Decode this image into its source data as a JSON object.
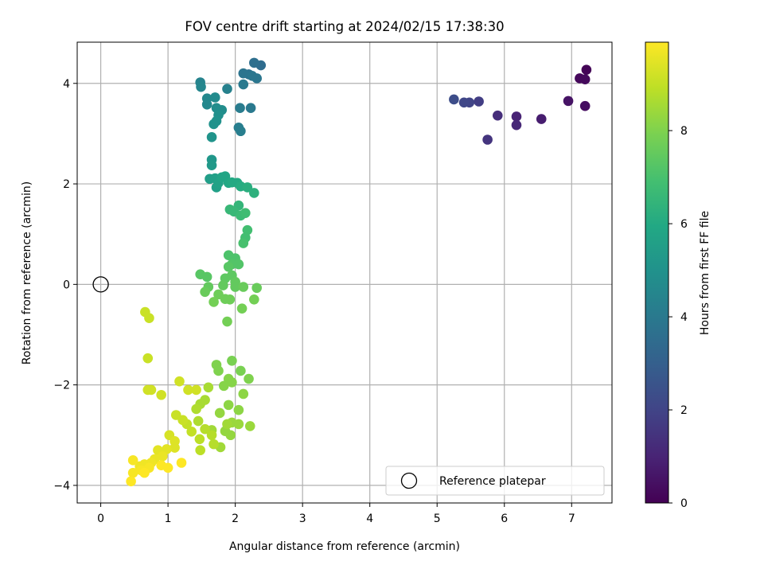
{
  "chart_data": {
    "type": "scatter",
    "title": "FOV centre drift starting at 2024/02/15 17:38:30",
    "xlabel": "Angular distance from reference (arcmin)",
    "ylabel": "Rotation from reference (arcmin)",
    "colorbar_label": "Hours from first FF file",
    "xlim": [
      -0.35,
      7.6
    ],
    "ylim": [
      -4.35,
      4.82
    ],
    "clim": [
      0,
      9.9
    ],
    "xticks": [
      0,
      1,
      2,
      3,
      4,
      5,
      6,
      7
    ],
    "yticks": [
      -4,
      -2,
      0,
      2,
      4
    ],
    "cticks": [
      0,
      2,
      4,
      6,
      8
    ],
    "grid": true,
    "legend": {
      "location": "lower right",
      "entries": [
        "Reference platepar"
      ]
    },
    "colormap": "viridis",
    "reference_point": {
      "x": 0,
      "y": 0,
      "label": "Reference platepar"
    },
    "points": [
      {
        "x": 7.22,
        "y": 4.27,
        "t": 0.1
      },
      {
        "x": 7.12,
        "y": 4.1,
        "t": 0.2
      },
      {
        "x": 7.2,
        "y": 4.08,
        "t": 0.25
      },
      {
        "x": 7.2,
        "y": 3.55,
        "t": 0.35
      },
      {
        "x": 6.95,
        "y": 3.65,
        "t": 0.5
      },
      {
        "x": 6.55,
        "y": 3.29,
        "t": 0.8
      },
      {
        "x": 6.18,
        "y": 3.34,
        "t": 1.0
      },
      {
        "x": 6.18,
        "y": 3.17,
        "t": 1.1
      },
      {
        "x": 5.9,
        "y": 3.36,
        "t": 1.3
      },
      {
        "x": 5.75,
        "y": 2.88,
        "t": 1.5
      },
      {
        "x": 5.62,
        "y": 3.64,
        "t": 1.8
      },
      {
        "x": 5.48,
        "y": 3.62,
        "t": 2.0
      },
      {
        "x": 5.4,
        "y": 3.62,
        "t": 2.1
      },
      {
        "x": 5.25,
        "y": 3.68,
        "t": 2.3
      },
      {
        "x": 2.38,
        "y": 4.36,
        "t": 3.5
      },
      {
        "x": 2.28,
        "y": 4.41,
        "t": 3.6
      },
      {
        "x": 2.2,
        "y": 4.18,
        "t": 3.7
      },
      {
        "x": 2.12,
        "y": 4.2,
        "t": 3.8
      },
      {
        "x": 2.32,
        "y": 4.1,
        "t": 3.9
      },
      {
        "x": 2.25,
        "y": 4.15,
        "t": 3.9
      },
      {
        "x": 2.12,
        "y": 3.98,
        "t": 4.0
      },
      {
        "x": 2.23,
        "y": 3.51,
        "t": 4.0
      },
      {
        "x": 2.07,
        "y": 3.51,
        "t": 4.1
      },
      {
        "x": 2.05,
        "y": 3.12,
        "t": 4.2
      },
      {
        "x": 2.08,
        "y": 3.05,
        "t": 4.2
      },
      {
        "x": 1.88,
        "y": 3.89,
        "t": 4.3
      },
      {
        "x": 1.48,
        "y": 4.02,
        "t": 4.4
      },
      {
        "x": 1.49,
        "y": 3.93,
        "t": 4.5
      },
      {
        "x": 1.58,
        "y": 3.7,
        "t": 4.6
      },
      {
        "x": 1.58,
        "y": 3.58,
        "t": 4.6
      },
      {
        "x": 1.7,
        "y": 3.72,
        "t": 4.7
      },
      {
        "x": 1.72,
        "y": 3.51,
        "t": 4.8
      },
      {
        "x": 1.8,
        "y": 3.47,
        "t": 4.8
      },
      {
        "x": 1.75,
        "y": 3.37,
        "t": 4.9
      },
      {
        "x": 1.72,
        "y": 3.25,
        "t": 5.0
      },
      {
        "x": 1.68,
        "y": 3.19,
        "t": 5.0
      },
      {
        "x": 1.65,
        "y": 2.93,
        "t": 5.1
      },
      {
        "x": 1.65,
        "y": 2.48,
        "t": 5.2
      },
      {
        "x": 1.65,
        "y": 2.37,
        "t": 5.3
      },
      {
        "x": 1.62,
        "y": 2.1,
        "t": 5.5
      },
      {
        "x": 1.7,
        "y": 2.11,
        "t": 5.6
      },
      {
        "x": 1.72,
        "y": 1.93,
        "t": 5.6
      },
      {
        "x": 1.75,
        "y": 2.02,
        "t": 5.7
      },
      {
        "x": 1.8,
        "y": 2.13,
        "t": 5.8
      },
      {
        "x": 1.85,
        "y": 2.15,
        "t": 5.8
      },
      {
        "x": 1.9,
        "y": 2.02,
        "t": 5.9
      },
      {
        "x": 1.95,
        "y": 2.03,
        "t": 6.0
      },
      {
        "x": 2.03,
        "y": 2.02,
        "t": 6.0
      },
      {
        "x": 2.08,
        "y": 1.95,
        "t": 6.1
      },
      {
        "x": 2.18,
        "y": 1.93,
        "t": 6.2
      },
      {
        "x": 2.28,
        "y": 1.82,
        "t": 6.3
      },
      {
        "x": 2.05,
        "y": 1.57,
        "t": 6.5
      },
      {
        "x": 1.92,
        "y": 1.49,
        "t": 6.6
      },
      {
        "x": 1.98,
        "y": 1.45,
        "t": 6.6
      },
      {
        "x": 2.08,
        "y": 1.37,
        "t": 6.7
      },
      {
        "x": 2.15,
        "y": 1.42,
        "t": 6.8
      },
      {
        "x": 2.18,
        "y": 1.08,
        "t": 6.9
      },
      {
        "x": 2.15,
        "y": 0.93,
        "t": 6.9
      },
      {
        "x": 2.12,
        "y": 0.82,
        "t": 7.0
      },
      {
        "x": 1.9,
        "y": 0.58,
        "t": 7.1
      },
      {
        "x": 2.0,
        "y": 0.52,
        "t": 7.1
      },
      {
        "x": 1.95,
        "y": 0.4,
        "t": 7.2
      },
      {
        "x": 2.05,
        "y": 0.4,
        "t": 7.2
      },
      {
        "x": 1.9,
        "y": 0.35,
        "t": 7.3
      },
      {
        "x": 1.48,
        "y": 0.2,
        "t": 7.3
      },
      {
        "x": 1.58,
        "y": 0.15,
        "t": 7.3
      },
      {
        "x": 1.85,
        "y": 0.12,
        "t": 7.4
      },
      {
        "x": 1.95,
        "y": 0.18,
        "t": 7.4
      },
      {
        "x": 2.0,
        "y": 0.05,
        "t": 7.5
      },
      {
        "x": 1.6,
        "y": -0.05,
        "t": 7.5
      },
      {
        "x": 1.82,
        "y": -0.02,
        "t": 7.5
      },
      {
        "x": 2.0,
        "y": -0.05,
        "t": 7.5
      },
      {
        "x": 2.12,
        "y": -0.05,
        "t": 7.6
      },
      {
        "x": 2.32,
        "y": -0.07,
        "t": 7.6
      },
      {
        "x": 1.55,
        "y": -0.15,
        "t": 7.6
      },
      {
        "x": 1.75,
        "y": -0.2,
        "t": 7.7
      },
      {
        "x": 1.85,
        "y": -0.29,
        "t": 7.7
      },
      {
        "x": 1.92,
        "y": -0.3,
        "t": 7.7
      },
      {
        "x": 1.68,
        "y": -0.35,
        "t": 7.8
      },
      {
        "x": 2.28,
        "y": -0.3,
        "t": 7.8
      },
      {
        "x": 2.1,
        "y": -0.48,
        "t": 7.8
      },
      {
        "x": 1.88,
        "y": -0.74,
        "t": 7.8
      },
      {
        "x": 1.95,
        "y": -1.52,
        "t": 7.9
      },
      {
        "x": 2.08,
        "y": -1.72,
        "t": 7.9
      },
      {
        "x": 2.2,
        "y": -1.88,
        "t": 8.0
      },
      {
        "x": 1.72,
        "y": -1.6,
        "t": 8.0
      },
      {
        "x": 1.75,
        "y": -1.72,
        "t": 8.0
      },
      {
        "x": 1.9,
        "y": -1.88,
        "t": 8.1
      },
      {
        "x": 1.83,
        "y": -2.02,
        "t": 8.1
      },
      {
        "x": 1.95,
        "y": -1.95,
        "t": 8.1
      },
      {
        "x": 2.12,
        "y": -2.18,
        "t": 8.2
      },
      {
        "x": 1.9,
        "y": -2.4,
        "t": 8.2
      },
      {
        "x": 2.05,
        "y": -2.5,
        "t": 8.2
      },
      {
        "x": 1.77,
        "y": -2.56,
        "t": 8.3
      },
      {
        "x": 1.85,
        "y": -2.92,
        "t": 8.3
      },
      {
        "x": 1.93,
        "y": -3.0,
        "t": 8.3
      },
      {
        "x": 1.95,
        "y": -2.75,
        "t": 8.4
      },
      {
        "x": 2.05,
        "y": -2.78,
        "t": 8.4
      },
      {
        "x": 2.22,
        "y": -2.82,
        "t": 8.4
      },
      {
        "x": 1.88,
        "y": -2.78,
        "t": 8.5
      },
      {
        "x": 1.78,
        "y": -3.24,
        "t": 8.5
      },
      {
        "x": 1.65,
        "y": -2.9,
        "t": 8.5
      },
      {
        "x": 1.6,
        "y": -2.05,
        "t": 8.6
      },
      {
        "x": 1.55,
        "y": -2.3,
        "t": 8.6
      },
      {
        "x": 1.48,
        "y": -2.38,
        "t": 8.6
      },
      {
        "x": 1.42,
        "y": -2.48,
        "t": 8.7
      },
      {
        "x": 1.45,
        "y": -2.72,
        "t": 8.7
      },
      {
        "x": 1.55,
        "y": -2.88,
        "t": 8.8
      },
      {
        "x": 1.65,
        "y": -3.0,
        "t": 8.8
      },
      {
        "x": 1.68,
        "y": -3.18,
        "t": 8.8
      },
      {
        "x": 1.47,
        "y": -3.08,
        "t": 8.9
      },
      {
        "x": 1.48,
        "y": -3.3,
        "t": 8.9
      },
      {
        "x": 1.35,
        "y": -2.93,
        "t": 9.0
      },
      {
        "x": 1.28,
        "y": -2.78,
        "t": 9.0
      },
      {
        "x": 1.22,
        "y": -2.7,
        "t": 9.1
      },
      {
        "x": 1.12,
        "y": -2.6,
        "t": 9.1
      },
      {
        "x": 1.3,
        "y": -2.1,
        "t": 9.2
      },
      {
        "x": 1.42,
        "y": -2.1,
        "t": 9.2
      },
      {
        "x": 1.17,
        "y": -1.93,
        "t": 9.2
      },
      {
        "x": 0.9,
        "y": -2.2,
        "t": 9.2
      },
      {
        "x": 0.7,
        "y": -2.1,
        "t": 9.2
      },
      {
        "x": 0.75,
        "y": -2.1,
        "t": 9.2
      },
      {
        "x": 0.7,
        "y": -1.47,
        "t": 9.1
      },
      {
        "x": 0.72,
        "y": -0.67,
        "t": 9.1
      },
      {
        "x": 0.66,
        "y": -0.55,
        "t": 9.1
      },
      {
        "x": 1.02,
        "y": -3.0,
        "t": 9.3
      },
      {
        "x": 1.1,
        "y": -3.12,
        "t": 9.4
      },
      {
        "x": 1.1,
        "y": -3.25,
        "t": 9.4
      },
      {
        "x": 0.98,
        "y": -3.28,
        "t": 9.5
      },
      {
        "x": 0.85,
        "y": -3.3,
        "t": 9.5
      },
      {
        "x": 0.92,
        "y": -3.42,
        "t": 9.6
      },
      {
        "x": 0.8,
        "y": -3.48,
        "t": 9.6
      },
      {
        "x": 0.75,
        "y": -3.55,
        "t": 9.7
      },
      {
        "x": 0.65,
        "y": -3.58,
        "t": 9.7
      },
      {
        "x": 0.58,
        "y": -3.62,
        "t": 9.7
      },
      {
        "x": 0.48,
        "y": -3.5,
        "t": 9.8
      },
      {
        "x": 0.48,
        "y": -3.75,
        "t": 9.8
      },
      {
        "x": 0.6,
        "y": -3.7,
        "t": 9.8
      },
      {
        "x": 0.72,
        "y": -3.65,
        "t": 9.8
      },
      {
        "x": 0.9,
        "y": -3.6,
        "t": 9.9
      },
      {
        "x": 1.0,
        "y": -3.65,
        "t": 9.9
      },
      {
        "x": 1.2,
        "y": -3.55,
        "t": 9.9
      },
      {
        "x": 0.45,
        "y": -3.92,
        "t": 9.9
      },
      {
        "x": 0.65,
        "y": -3.75,
        "t": 9.9
      }
    ]
  }
}
